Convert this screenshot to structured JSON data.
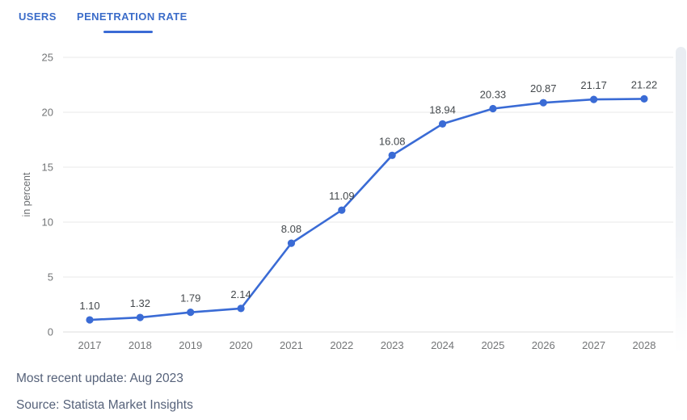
{
  "tabs": [
    {
      "label": "USERS",
      "active": false
    },
    {
      "label": "PENETRATION RATE",
      "active": true
    }
  ],
  "footer": {
    "updated": "Most recent update: Aug 2023",
    "source": "Source: Statista Market Insights"
  },
  "colors": {
    "accent": "#3a6bd5",
    "tab_text": "#3b6cc9",
    "grid": "#e9e9e9",
    "zero_line": "#dcdcdc",
    "axis_text": "#737577",
    "label_text": "#43484c",
    "footer_text": "#56627a"
  },
  "chart_data": {
    "type": "line",
    "categories": [
      "2017",
      "2018",
      "2019",
      "2020",
      "2021",
      "2022",
      "2023",
      "2024",
      "2025",
      "2026",
      "2027",
      "2028"
    ],
    "series": [
      {
        "name": "Penetration Rate",
        "values": [
          1.1,
          1.32,
          1.79,
          2.14,
          8.08,
          11.09,
          16.08,
          18.94,
          20.33,
          20.87,
          21.17,
          21.22
        ]
      }
    ],
    "point_labels": [
      "1.10",
      "1.32",
      "1.79",
      "2.14",
      "8.08",
      "11.09",
      "16.08",
      "18.94",
      "20.33",
      "20.87",
      "21.17",
      "21.22"
    ],
    "ylabel": "in percent",
    "xlabel": "",
    "yticks": [
      0,
      5,
      10,
      15,
      20,
      25
    ],
    "ylim": [
      0,
      25
    ],
    "grid": true,
    "legend": false
  }
}
